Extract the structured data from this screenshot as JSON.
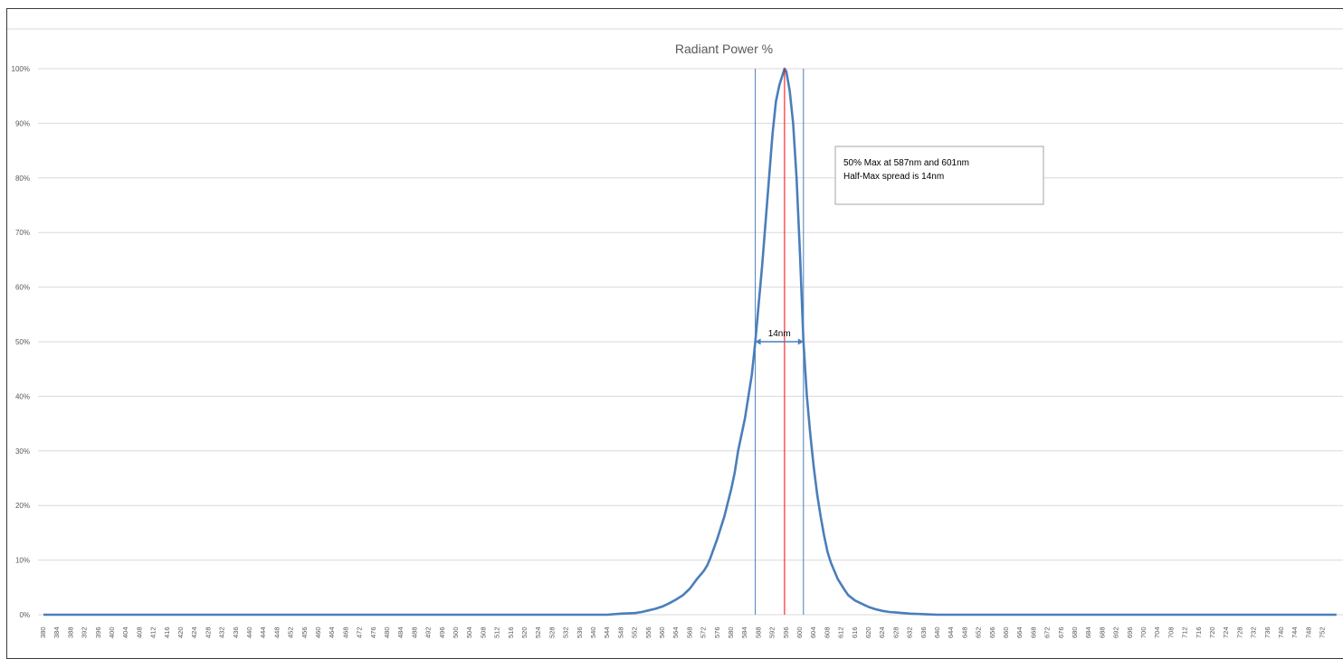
{
  "chart_data": {
    "type": "line",
    "title": "Radiant Power %",
    "xlabel": "",
    "ylabel": "",
    "x_ticks": [
      380,
      384,
      388,
      392,
      396,
      400,
      404,
      408,
      412,
      416,
      420,
      424,
      428,
      432,
      436,
      440,
      444,
      448,
      452,
      456,
      460,
      464,
      468,
      472,
      476,
      480,
      484,
      488,
      492,
      496,
      500,
      504,
      508,
      512,
      516,
      520,
      524,
      528,
      532,
      536,
      540,
      544,
      548,
      552,
      556,
      560,
      564,
      568,
      572,
      576,
      580,
      584,
      588,
      592,
      596,
      600,
      604,
      608,
      612,
      616,
      620,
      624,
      628,
      632,
      636,
      640,
      644,
      648,
      652,
      656,
      660,
      664,
      668,
      672,
      676,
      680,
      684,
      688,
      692,
      696,
      700,
      704,
      708,
      712,
      716,
      720,
      724,
      728,
      732,
      736,
      740,
      744,
      748,
      752
    ],
    "y_ticks": [
      "0%",
      "10%",
      "20%",
      "30%",
      "40%",
      "50%",
      "60%",
      "70%",
      "80%",
      "90%",
      "100%"
    ],
    "ylim": [
      0,
      100
    ],
    "grid": true,
    "series": [
      {
        "color": "#4a7ebb",
        "points": [
          [
            380,
            0
          ],
          [
            384,
            0
          ],
          [
            388,
            0
          ],
          [
            392,
            0
          ],
          [
            396,
            0
          ],
          [
            400,
            0
          ],
          [
            404,
            0
          ],
          [
            408,
            0
          ],
          [
            412,
            0
          ],
          [
            416,
            0
          ],
          [
            420,
            0
          ],
          [
            424,
            0
          ],
          [
            428,
            0
          ],
          [
            432,
            0
          ],
          [
            436,
            0
          ],
          [
            440,
            0
          ],
          [
            444,
            0
          ],
          [
            448,
            0
          ],
          [
            452,
            0
          ],
          [
            456,
            0
          ],
          [
            460,
            0
          ],
          [
            464,
            0
          ],
          [
            468,
            0
          ],
          [
            472,
            0
          ],
          [
            476,
            0
          ],
          [
            480,
            0
          ],
          [
            484,
            0
          ],
          [
            488,
            0
          ],
          [
            492,
            0
          ],
          [
            496,
            0
          ],
          [
            500,
            0
          ],
          [
            504,
            0
          ],
          [
            508,
            0
          ],
          [
            512,
            0
          ],
          [
            516,
            0
          ],
          [
            520,
            0
          ],
          [
            524,
            0
          ],
          [
            528,
            0
          ],
          [
            532,
            0
          ],
          [
            536,
            0
          ],
          [
            540,
            0
          ],
          [
            544,
            0
          ],
          [
            548,
            0.2
          ],
          [
            552,
            0.3
          ],
          [
            554,
            0.5
          ],
          [
            556,
            0.8
          ],
          [
            558,
            1.1
          ],
          [
            560,
            1.5
          ],
          [
            562,
            2.1
          ],
          [
            564,
            2.8
          ],
          [
            566,
            3.6
          ],
          [
            568,
            4.8
          ],
          [
            570,
            6.5
          ],
          [
            572,
            8
          ],
          [
            573,
            9
          ],
          [
            574,
            10.5
          ],
          [
            576,
            14
          ],
          [
            578,
            18
          ],
          [
            580,
            23
          ],
          [
            581,
            26
          ],
          [
            582,
            30
          ],
          [
            584,
            36
          ],
          [
            586,
            44
          ],
          [
            587,
            50
          ],
          [
            588,
            57
          ],
          [
            589,
            64
          ],
          [
            590,
            72
          ],
          [
            591,
            80
          ],
          [
            592,
            88
          ],
          [
            593,
            94
          ],
          [
            594,
            97
          ],
          [
            595,
            99
          ],
          [
            595.5,
            100
          ],
          [
            596,
            99.5
          ],
          [
            597,
            96
          ],
          [
            598,
            90
          ],
          [
            599,
            80
          ],
          [
            600,
            66
          ],
          [
            601,
            50
          ],
          [
            602,
            40
          ],
          [
            603,
            33
          ],
          [
            604,
            27
          ],
          [
            605,
            22
          ],
          [
            606,
            18
          ],
          [
            607,
            14.5
          ],
          [
            608,
            11.5
          ],
          [
            609,
            9.5
          ],
          [
            610,
            8
          ],
          [
            611,
            6.5
          ],
          [
            612,
            5.5
          ],
          [
            613,
            4.5
          ],
          [
            614,
            3.6
          ],
          [
            616,
            2.6
          ],
          [
            618,
            2
          ],
          [
            620,
            1.4
          ],
          [
            622,
            1
          ],
          [
            624,
            0.7
          ],
          [
            626,
            0.5
          ],
          [
            628,
            0.4
          ],
          [
            630,
            0.3
          ],
          [
            632,
            0.2
          ],
          [
            636,
            0.1
          ],
          [
            640,
            0
          ],
          [
            648,
            0
          ],
          [
            656,
            0
          ],
          [
            664,
            0
          ],
          [
            672,
            0
          ],
          [
            680,
            0
          ],
          [
            688,
            0
          ],
          [
            696,
            0
          ],
          [
            704,
            0
          ],
          [
            712,
            0
          ],
          [
            720,
            0
          ],
          [
            728,
            0
          ],
          [
            736,
            0
          ],
          [
            744,
            0
          ],
          [
            752,
            0
          ],
          [
            756,
            0
          ]
        ]
      }
    ],
    "reference_lines": {
      "half_max_left_nm": 587,
      "half_max_right_nm": 601,
      "peak_nm": 595.5,
      "half_max_color": "#4a7ebb",
      "peak_color": "#ff0000"
    },
    "span_annotation": {
      "label": "14nm",
      "from_nm": 587,
      "to_nm": 601,
      "level_pct": 50
    },
    "note_box": {
      "line1": "50% Max at 587nm and 601nm",
      "line2": "Half-Max spread is 14nm"
    }
  }
}
